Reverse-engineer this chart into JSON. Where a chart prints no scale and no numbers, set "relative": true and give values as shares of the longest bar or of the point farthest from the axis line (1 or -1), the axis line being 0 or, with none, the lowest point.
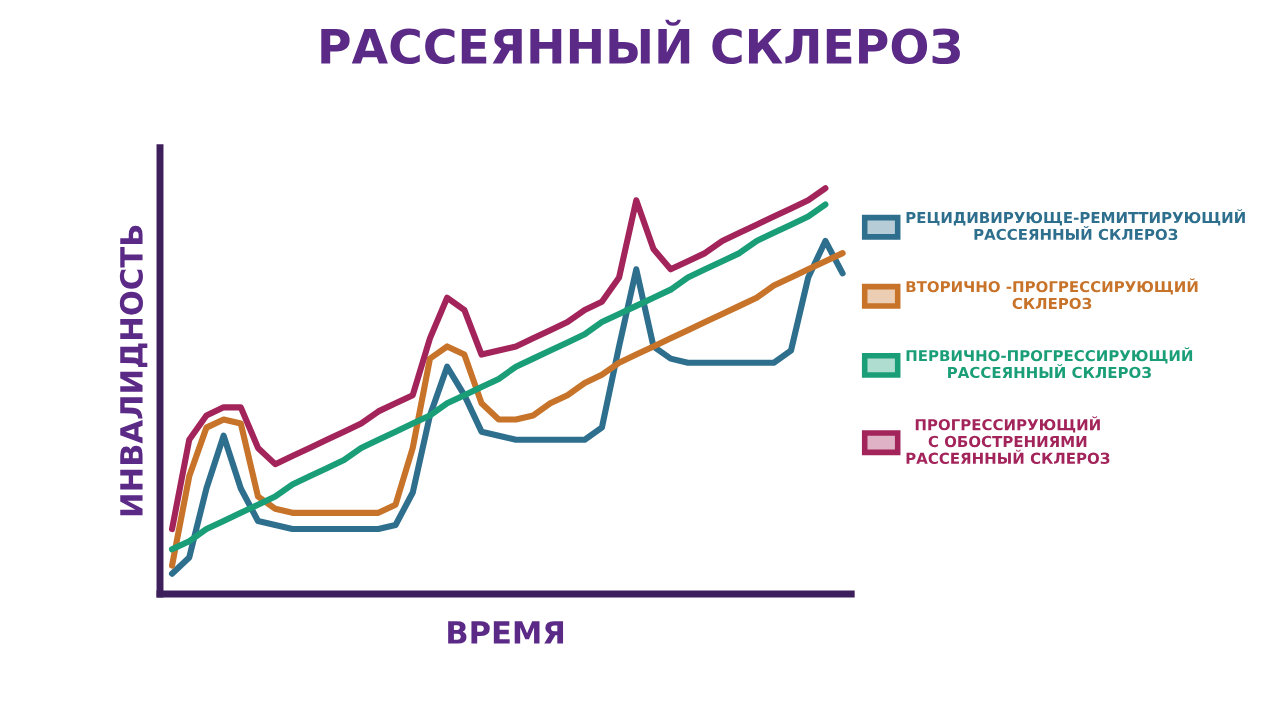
{
  "chart_data": {
    "type": "line",
    "title": "РАССЕЯННЫЙ СКЛЕРОЗ",
    "xlabel": "ВРЕМЯ",
    "ylabel": "ИНВАЛИДНОСТЬ",
    "relative": true,
    "legend": "right",
    "grid": false,
    "marker": "none",
    "line_style": "solid",
    "categories": [
      null,
      null,
      null,
      null,
      null,
      null,
      null,
      null,
      null,
      null,
      null,
      null,
      null,
      null,
      null,
      null,
      null,
      null,
      null,
      null,
      null,
      null,
      null,
      null,
      null,
      null,
      null,
      null,
      null,
      null,
      null,
      null,
      null,
      null,
      null,
      null,
      null,
      null,
      null,
      null
    ],
    "series": [
      {
        "name": "РЕЦИДИВИРУЮЩЕ-РЕМИТТИРУЮЩИЙ\nРАССЕЯННЫЙ СКЛЕРОЗ",
        "color": "#2e6f8e",
        "values": [
          0.05,
          0.09,
          0.26,
          0.39,
          0.26,
          0.18,
          0.17,
          0.16,
          0.16,
          0.16,
          0.16,
          0.16,
          0.16,
          0.17,
          0.25,
          0.44,
          0.56,
          0.49,
          0.4,
          0.39,
          0.38,
          0.38,
          0.38,
          0.38,
          0.38,
          0.41,
          0.61,
          0.8,
          0.61,
          0.58,
          0.57,
          0.57,
          0.57,
          0.57,
          0.57,
          0.57,
          0.6,
          0.78,
          0.87,
          0.79
        ]
      },
      {
        "name": "ВТОРИЧНО -ПРОГРЕССИРУЮЩИЙ\nСКЛЕРОЗ",
        "color": "#c8732a",
        "values": [
          0.07,
          0.29,
          0.41,
          0.43,
          0.42,
          0.24,
          0.21,
          0.2,
          0.2,
          0.2,
          0.2,
          0.2,
          0.2,
          0.22,
          0.36,
          0.58,
          0.61,
          0.59,
          0.47,
          0.43,
          0.43,
          0.44,
          0.47,
          0.49,
          0.52,
          0.54,
          0.57,
          0.59,
          0.61,
          0.63,
          0.65,
          0.67,
          0.69,
          0.71,
          0.73,
          0.76,
          0.78,
          0.8,
          0.82,
          0.84
        ]
      },
      {
        "name": "ПЕРВИЧНО-ПРОГРЕССИРУЮЩИЙ\nРАССЕЯННЫЙ СКЛЕРОЗ",
        "color": "#1a9e77",
        "values": [
          0.11,
          0.13,
          0.16,
          0.18,
          0.2,
          0.22,
          0.24,
          0.27,
          0.29,
          0.31,
          0.33,
          0.36,
          0.38,
          0.4,
          0.42,
          0.44,
          0.47,
          0.49,
          0.51,
          0.53,
          0.56,
          0.58,
          0.6,
          0.62,
          0.64,
          0.67,
          0.69,
          0.71,
          0.73,
          0.75,
          0.78,
          0.8,
          0.82,
          0.84,
          0.87,
          0.89,
          0.91,
          0.93,
          0.96,
          null
        ]
      },
      {
        "name": "ПРОГРЕССИРУЮЩИЙ\nС ОБОСТРЕНИЯМИ\nРАССЕЯННЫЙ СКЛЕРОЗ",
        "color": "#a3245a",
        "values": [
          0.16,
          0.38,
          0.44,
          0.46,
          0.46,
          0.36,
          0.32,
          0.34,
          0.36,
          0.38,
          0.4,
          0.42,
          0.45,
          0.47,
          0.49,
          0.63,
          0.73,
          0.7,
          0.59,
          0.6,
          0.61,
          0.63,
          0.65,
          0.67,
          0.7,
          0.72,
          0.78,
          0.97,
          0.85,
          0.8,
          0.82,
          0.84,
          0.87,
          0.89,
          0.91,
          0.93,
          0.95,
          0.97,
          1.0,
          null
        ]
      }
    ]
  }
}
